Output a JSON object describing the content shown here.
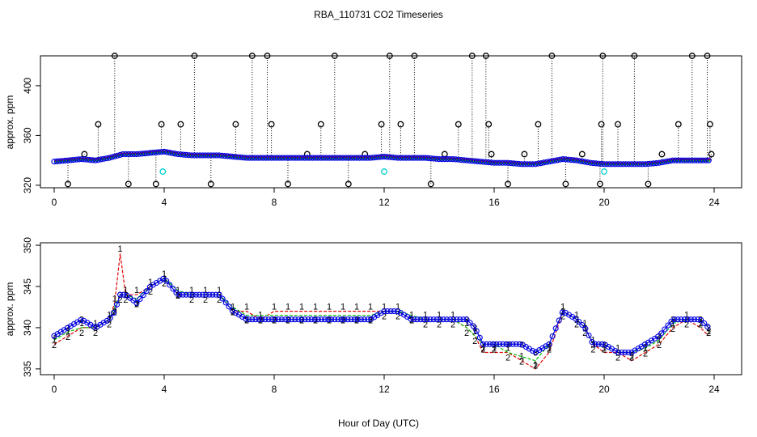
{
  "title": "RBA_110731  CO2 Timeseries",
  "xlabel": "Hour of Day (UTC)",
  "colors": {
    "series1": "#e00000",
    "series2": "#00c000",
    "series3": "#0000e0",
    "outlier": "#000000",
    "cyan": "#00d0d0"
  },
  "chart_data": [
    {
      "type": "scatter",
      "panel": "top",
      "title": "RBA_110731  CO2 Timeseries",
      "xlabel": "",
      "ylabel": "approx. ppm",
      "xlim": [
        -0.5,
        25
      ],
      "ylim": [
        318,
        424
      ],
      "xticks": [
        0,
        4,
        8,
        12,
        16,
        20,
        24
      ],
      "yticks": [
        320,
        360,
        400
      ],
      "grid": false,
      "baseline": {
        "x": [
          0,
          0.5,
          1,
          1.5,
          2,
          2.5,
          3,
          3.5,
          4,
          4.5,
          5,
          5.5,
          6,
          6.5,
          7,
          7.5,
          8,
          8.5,
          9,
          9.5,
          10,
          10.5,
          11,
          11.5,
          12,
          12.5,
          13,
          13.5,
          14,
          14.5,
          15,
          15.5,
          16,
          16.5,
          17,
          17.5,
          18,
          18.5,
          19,
          19.5,
          20,
          20.5,
          21,
          21.5,
          22,
          22.5,
          23,
          23.5,
          23.9
        ],
        "y": [
          339,
          340,
          341,
          340,
          342,
          345,
          345,
          346,
          347,
          345,
          344,
          344,
          344,
          343,
          342,
          342,
          342,
          342,
          342,
          342,
          342,
          342,
          342,
          342,
          343,
          342,
          342,
          342,
          341,
          341,
          340,
          339,
          338,
          338,
          337,
          337,
          339,
          341,
          340,
          338,
          337,
          337,
          337,
          337,
          338,
          340,
          340,
          340,
          340
        ]
      },
      "highs": {
        "x": [
          0.5,
          1.1,
          1.6,
          2.2,
          2.7,
          3.7,
          3.9,
          4.6,
          5.1,
          5.7,
          6.6,
          7.2,
          7.75,
          7.9,
          8.5,
          9.2,
          9.7,
          10.2,
          10.7,
          11.3,
          11.9,
          12.2,
          12.6,
          13.1,
          13.7,
          14.2,
          14.7,
          15.2,
          15.7,
          15.8,
          15.9,
          16.5,
          17.1,
          17.6,
          18.1,
          18.6,
          19.2,
          19.85,
          19.9,
          19.95,
          20.5,
          21.1,
          21.6,
          22.1,
          22.7,
          23.2,
          23.75,
          23.85,
          23.9
        ],
        "y": [
          321,
          345,
          369,
          424,
          321,
          321,
          369,
          369,
          424,
          321,
          369,
          424,
          424,
          369,
          321,
          345,
          369,
          424,
          321,
          345,
          369,
          424,
          369,
          424,
          321,
          345,
          369,
          424,
          424,
          369,
          345,
          321,
          345,
          369,
          424,
          321,
          345,
          321,
          369,
          424,
          369,
          424,
          321,
          345,
          369,
          424,
          424,
          369,
          345
        ]
      },
      "cyan_points": {
        "x": [
          3.95,
          12.0,
          20.0
        ],
        "y": [
          331,
          331,
          331
        ]
      }
    },
    {
      "type": "line",
      "panel": "bottom",
      "xlabel": "Hour of Day (UTC)",
      "ylabel": "approx. ppm",
      "xlim": [
        -0.5,
        25
      ],
      "ylim": [
        334.3,
        350.3
      ],
      "xticks": [
        0,
        4,
        8,
        12,
        16,
        20,
        24
      ],
      "yticks": [
        335,
        340,
        345,
        350
      ],
      "grid": false,
      "marker_labels": [
        "1",
        "2",
        "3"
      ],
      "x": [
        0,
        0.5,
        1,
        1.5,
        2,
        2.2,
        2.4,
        2.6,
        3,
        3.5,
        4,
        4.5,
        5,
        5.5,
        6,
        6.5,
        7,
        7.5,
        8,
        8.5,
        9,
        9.5,
        10,
        10.5,
        11,
        11.5,
        12,
        12.5,
        13,
        13.5,
        14,
        14.5,
        15,
        15.3,
        15.6,
        16,
        16.5,
        17,
        17.5,
        18,
        18.5,
        19,
        19.3,
        19.6,
        20,
        20.5,
        21,
        21.5,
        22,
        22.5,
        23,
        23.5,
        23.8
      ],
      "series": [
        {
          "values": [
            338,
            339,
            340,
            340,
            341,
            343,
            349,
            344,
            344,
            345,
            346,
            344,
            344,
            344,
            344,
            342,
            342,
            341,
            342,
            342,
            342,
            342,
            342,
            342,
            342,
            342,
            342,
            342,
            341,
            341,
            341,
            341,
            340,
            339,
            337,
            337,
            337,
            336,
            335,
            337,
            342,
            341,
            340,
            338,
            337,
            337,
            336,
            337,
            338,
            340,
            341,
            340,
            339
          ]
        },
        {
          "values": [
            338.5,
            339.5,
            340,
            340,
            341,
            342.5,
            344,
            344,
            343.5,
            345,
            346,
            344.5,
            344,
            344,
            344,
            342.5,
            341.5,
            341.5,
            341.5,
            341.5,
            341.5,
            341.5,
            341.5,
            341.5,
            341.5,
            341.5,
            342,
            342,
            341.5,
            341,
            341,
            341,
            340,
            339,
            338,
            338,
            337,
            336.5,
            336,
            338,
            342,
            341,
            340,
            338,
            338,
            337,
            337,
            337.5,
            338.5,
            340.5,
            341,
            341,
            340
          ]
        },
        {
          "values": [
            339,
            340,
            341,
            340,
            341,
            342,
            344,
            344,
            343,
            345,
            346,
            344,
            344,
            344,
            344,
            342,
            341,
            341,
            341,
            341,
            341,
            341,
            341,
            341,
            341,
            341,
            342,
            342,
            341,
            341,
            341,
            341,
            341,
            340,
            338,
            338,
            338,
            338,
            337,
            338,
            342,
            341,
            340,
            338,
            338,
            337,
            337,
            338,
            339,
            341,
            341,
            341,
            340
          ]
        }
      ]
    }
  ]
}
